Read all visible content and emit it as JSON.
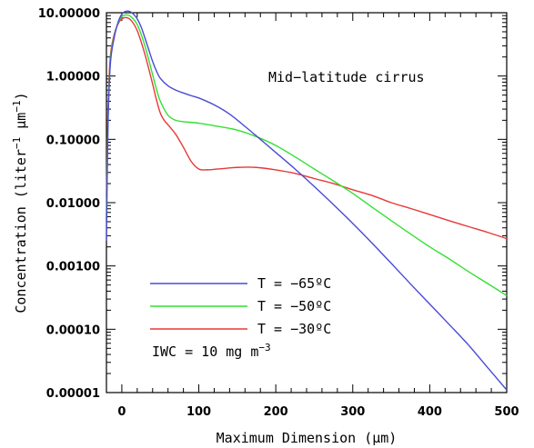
{
  "chart_data": {
    "type": "line",
    "title": "",
    "annotation": "Mid−latitude cirrus",
    "xlabel": "Maximum Dimension (μm)",
    "ylabel_main": "Concentration (liter",
    "ylabel_exp1": "−1",
    "ylabel_mid": " μm",
    "ylabel_exp2": "−1",
    "ylabel_end": ")",
    "xlim": [
      -20,
      500
    ],
    "ylim": [
      1e-05,
      10
    ],
    "yscale": "log",
    "x_ticks": [
      0,
      100,
      200,
      300,
      400,
      500
    ],
    "x_tick_labels": [
      "0",
      "100",
      "200",
      "300",
      "400",
      "500"
    ],
    "y_ticks": [
      1e-05,
      0.0001,
      0.001,
      0.01,
      0.1,
      1,
      10
    ],
    "y_tick_labels": [
      "0.00001",
      "0.00010",
      "0.00100",
      "0.01000",
      "0.10000",
      "1.00000",
      "10.00000"
    ],
    "legend_position": "lower-left",
    "iwc_text": "IWC = 10 mg m",
    "iwc_exp": "−3",
    "series": [
      {
        "name": "T = −65ºC",
        "color": "#4a4ad6",
        "points": [
          [
            -20,
            0.0025
          ],
          [
            -18,
            0.15
          ],
          [
            -15,
            1.5
          ],
          [
            -10,
            4
          ],
          [
            -5,
            7
          ],
          [
            0,
            9.5
          ],
          [
            5,
            10.5
          ],
          [
            10,
            10.5
          ],
          [
            15,
            9.5
          ],
          [
            20,
            8
          ],
          [
            25,
            6
          ],
          [
            30,
            4
          ],
          [
            35,
            2.6
          ],
          [
            40,
            1.7
          ],
          [
            45,
            1.2
          ],
          [
            50,
            0.92
          ],
          [
            60,
            0.7
          ],
          [
            70,
            0.6
          ],
          [
            80,
            0.54
          ],
          [
            90,
            0.49
          ],
          [
            100,
            0.45
          ],
          [
            120,
            0.35
          ],
          [
            140,
            0.25
          ],
          [
            160,
            0.16
          ],
          [
            180,
            0.1
          ],
          [
            200,
            0.062
          ],
          [
            225,
            0.034
          ],
          [
            250,
            0.018
          ],
          [
            275,
            0.0093
          ],
          [
            300,
            0.0047
          ],
          [
            325,
            0.0023
          ],
          [
            350,
            0.0011
          ],
          [
            375,
            0.00052
          ],
          [
            400,
            0.00025
          ],
          [
            425,
            0.00012
          ],
          [
            450,
            5.7e-05
          ],
          [
            475,
            2.5e-05
          ],
          [
            500,
            1.1e-05
          ]
        ]
      },
      {
        "name": "T = −50ºC",
        "color": "#33e033",
        "points": [
          [
            -20,
            0.006
          ],
          [
            -18,
            0.2
          ],
          [
            -15,
            1.7
          ],
          [
            -10,
            4.2
          ],
          [
            -5,
            6.8
          ],
          [
            0,
            8.7
          ],
          [
            5,
            9.2
          ],
          [
            10,
            9
          ],
          [
            15,
            8
          ],
          [
            20,
            6.5
          ],
          [
            25,
            4.6
          ],
          [
            30,
            3
          ],
          [
            35,
            1.8
          ],
          [
            40,
            1.05
          ],
          [
            45,
            0.62
          ],
          [
            50,
            0.4
          ],
          [
            60,
            0.24
          ],
          [
            70,
            0.2
          ],
          [
            80,
            0.19
          ],
          [
            100,
            0.18
          ],
          [
            125,
            0.16
          ],
          [
            150,
            0.14
          ],
          [
            175,
            0.11
          ],
          [
            200,
            0.08
          ],
          [
            225,
            0.053
          ],
          [
            250,
            0.034
          ],
          [
            275,
            0.022
          ],
          [
            300,
            0.014
          ],
          [
            325,
            0.0085
          ],
          [
            350,
            0.0052
          ],
          [
            375,
            0.0032
          ],
          [
            400,
            0.002
          ],
          [
            425,
            0.0013
          ],
          [
            450,
            0.00082
          ],
          [
            475,
            0.00053
          ],
          [
            500,
            0.00034
          ]
        ]
      },
      {
        "name": "T = −30ºC",
        "color": "#e83838",
        "points": [
          [
            -20,
            0.012
          ],
          [
            -18,
            0.3
          ],
          [
            -15,
            2
          ],
          [
            -10,
            4.5
          ],
          [
            -5,
            6.6
          ],
          [
            0,
            8
          ],
          [
            5,
            8.4
          ],
          [
            10,
            8
          ],
          [
            15,
            6.8
          ],
          [
            20,
            5.2
          ],
          [
            25,
            3.5
          ],
          [
            30,
            2.2
          ],
          [
            35,
            1.3
          ],
          [
            40,
            0.75
          ],
          [
            45,
            0.42
          ],
          [
            50,
            0.26
          ],
          [
            55,
            0.2
          ],
          [
            60,
            0.17
          ],
          [
            70,
            0.12
          ],
          [
            80,
            0.075
          ],
          [
            90,
            0.045
          ],
          [
            100,
            0.034
          ],
          [
            110,
            0.033
          ],
          [
            125,
            0.034
          ],
          [
            150,
            0.036
          ],
          [
            175,
            0.036
          ],
          [
            200,
            0.033
          ],
          [
            225,
            0.029
          ],
          [
            250,
            0.024
          ],
          [
            275,
            0.02
          ],
          [
            300,
            0.016
          ],
          [
            325,
            0.013
          ],
          [
            350,
            0.01
          ],
          [
            375,
            0.0081
          ],
          [
            400,
            0.0065
          ],
          [
            425,
            0.0052
          ],
          [
            450,
            0.0042
          ],
          [
            475,
            0.0034
          ],
          [
            500,
            0.0027
          ]
        ]
      }
    ]
  }
}
